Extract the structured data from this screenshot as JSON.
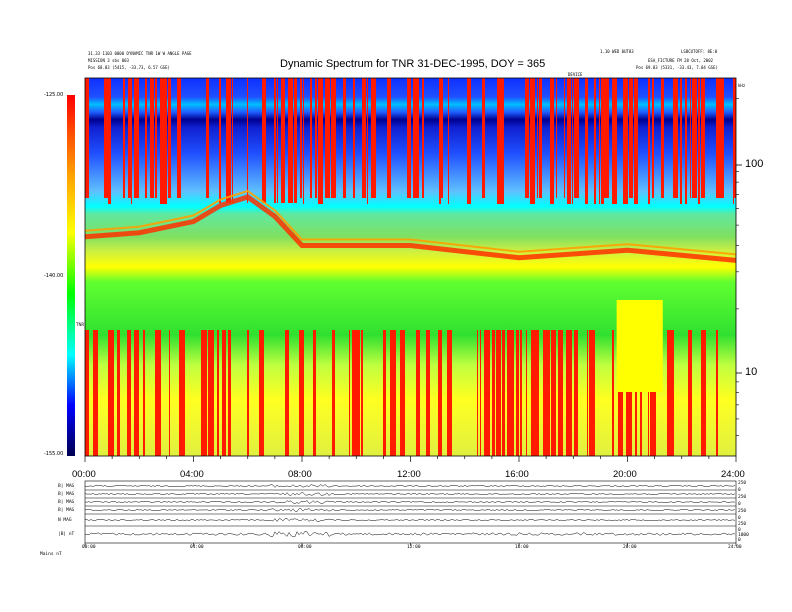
{
  "header": {
    "title": "Dynamic Spectrum for TNR 31-DEC-1995, DOY = 365",
    "left_line1": "31.33  1103 0000 DYNAMIC  TNR 1W W  ANGLE PAGE",
    "left_line2": "MISSION 3 sbs 003",
    "left_line3": "Pos    68.03 (5415, -33.73, 6.57 GSE)",
    "right_line1": "1.10 WED 0UT03",
    "right_line2": "LSBCUTOFF: 8E:0",
    "right_line3": "ESA_FICTURE FM 28 Oct, 2002",
    "right_line4": "Pos    69.83 (5331, -33.43, 7.04 GSE)",
    "center_small": "DEVICE"
  },
  "colorbar": {
    "ticks": [
      "-125.00",
      "-140.00",
      "-155.00"
    ],
    "label": "TNR"
  },
  "freq_axis": {
    "unit": "kHz",
    "ticks": [
      "100",
      "10"
    ]
  },
  "time_axis": {
    "ticks": [
      "00:00",
      "04:00",
      "08:00",
      "12:00",
      "16:00",
      "20:00",
      "24:00"
    ]
  },
  "bottom_panels": {
    "labels": [
      "B| MAG",
      "B| MAG",
      "B| MAG",
      "B| MAG",
      "N MAG",
      "|B| nT"
    ],
    "right_ticks": [
      "250",
      "0",
      "250",
      "0",
      "250",
      "0",
      "250",
      "0",
      "1000",
      "0",
      "10",
      "0"
    ],
    "mini_ticks": [
      "00:00",
      "04:00",
      "08:00",
      "12:00",
      "16:00",
      "20:00",
      "24:00"
    ],
    "footer": "Mains   nT"
  },
  "chart_data": {
    "type": "heatmap",
    "title": "Dynamic Spectrum for TNR 31-DEC-1995, DOY = 365",
    "x_ticks": [
      "00:00",
      "04:00",
      "08:00",
      "12:00",
      "16:00",
      "20:00",
      "24:00"
    ],
    "x_range_hours": [
      0,
      24
    ],
    "y_unit": "kHz",
    "y_scale": "log",
    "y_ticks": [
      100,
      10
    ],
    "y_range_khz": [
      4,
      250
    ],
    "color_range_db": [
      -155.0,
      -125.0
    ],
    "colormap": [
      "#000050",
      "#0000ff",
      "#00ffff",
      "#00ff00",
      "#ffff00",
      "#ff0000"
    ],
    "series": [
      {
        "name": "emission_peak_khz",
        "values": [
          [
            0,
            44
          ],
          [
            2,
            46
          ],
          [
            4,
            52
          ],
          [
            5,
            62
          ],
          [
            6,
            68
          ],
          [
            7,
            55
          ],
          [
            8,
            40
          ],
          [
            10,
            40
          ],
          [
            12,
            40
          ],
          [
            16,
            35
          ],
          [
            20,
            38
          ],
          [
            24,
            34
          ]
        ]
      }
    ]
  }
}
